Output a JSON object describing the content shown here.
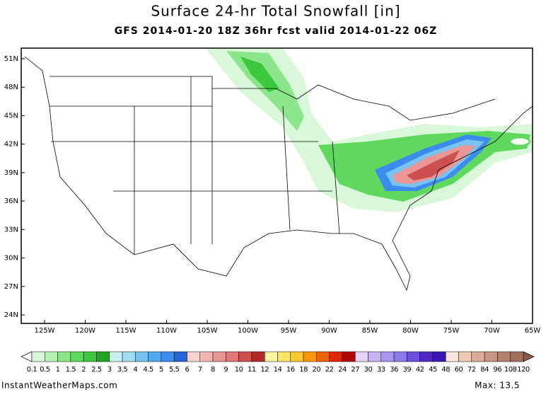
{
  "header": {
    "title": "Surface 24-hr Total Snowfall [in]",
    "subtitle": "GFS 2014-01-20 18Z 36hr fcst valid 2014-01-22 06Z"
  },
  "map": {
    "lat_labels": [
      "51N",
      "48N",
      "45N",
      "42N",
      "39N",
      "36N",
      "33N",
      "30N",
      "27N",
      "24N"
    ],
    "lon_labels": [
      "125W",
      "120W",
      "115W",
      "110W",
      "105W",
      "100W",
      "95W",
      "90W",
      "85W",
      "80W",
      "75W",
      "70W",
      "65W"
    ]
  },
  "colorbar": {
    "labels": [
      "0.1",
      "0.5",
      "1",
      "1.5",
      "2",
      "2.5",
      "3",
      "3.5",
      "4",
      "4.5",
      "5",
      "5.5",
      "6",
      "7",
      "8",
      "9",
      "10",
      "11",
      "12",
      "14",
      "16",
      "18",
      "20",
      "22",
      "24",
      "27",
      "30",
      "33",
      "36",
      "39",
      "42",
      "45",
      "48",
      "60",
      "72",
      "84",
      "96",
      "108",
      "120"
    ],
    "colors": [
      "#d9f7d9",
      "#b4f0b4",
      "#8be58b",
      "#5ed95e",
      "#3cc83c",
      "#1fa51f",
      "#c8f0f0",
      "#a0dcf0",
      "#78c3f0",
      "#50aaf0",
      "#3c8cf0",
      "#2864dc",
      "#fad2d2",
      "#f5b4b4",
      "#eb9696",
      "#e17878",
      "#cd5050",
      "#b42828",
      "#fff5a0",
      "#ffe664",
      "#ffc832",
      "#ff9600",
      "#f06400",
      "#dc2800",
      "#b40000",
      "#e6d2fa",
      "#c8b4f5",
      "#aa96f0",
      "#8c78e6",
      "#6e50dc",
      "#5028c8",
      "#3c14b4",
      "#fae6dc",
      "#f0c8b4",
      "#dcaa96",
      "#c89682",
      "#b4826e",
      "#a0705a"
    ]
  },
  "footer": {
    "site": "InstantWeatherMaps.com",
    "max": "Max:  13.5"
  }
}
